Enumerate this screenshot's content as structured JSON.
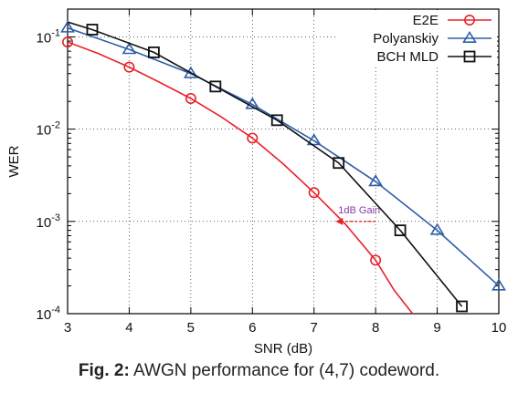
{
  "caption": {
    "label": "Fig. 2:",
    "text": "AWGN performance for (4,7) codeword."
  },
  "chart_data": {
    "type": "line",
    "xlabel": "SNR (dB)",
    "ylabel": "WER",
    "xlim": [
      3,
      10
    ],
    "ylim": [
      0.0001,
      0.2
    ],
    "y_scale": "log",
    "grid": true,
    "legend_position": "top-right",
    "x_ticks": [
      "3",
      "4",
      "5",
      "6",
      "7",
      "8",
      "9",
      "10"
    ],
    "y_ticks": [
      {
        "base": "10",
        "exp": "-1",
        "value": 0.1
      },
      {
        "base": "10",
        "exp": "-2",
        "value": 0.01
      },
      {
        "base": "10",
        "exp": "-3",
        "value": 0.001
      },
      {
        "base": "10",
        "exp": "-4",
        "value": 0.0001
      }
    ],
    "series": [
      {
        "name": "E2E",
        "color": "#e8222a",
        "marker": "circle",
        "line": {
          "x": [
            3,
            3.5,
            4,
            4.5,
            5,
            5.5,
            6,
            6.5,
            7,
            7.5,
            8,
            8.3,
            8.6
          ],
          "y": [
            0.088,
            0.066,
            0.047,
            0.032,
            0.0215,
            0.0135,
            0.008,
            0.0042,
            0.00205,
            0.00095,
            0.00038,
            0.00018,
            0.0001
          ]
        },
        "markers": {
          "x": [
            3,
            4,
            5,
            6,
            7,
            8
          ],
          "y": [
            0.088,
            0.047,
            0.0215,
            0.008,
            0.00205,
            0.00038
          ]
        }
      },
      {
        "name": "Polyanskiy",
        "color": "#2e5ea8",
        "marker": "triangle",
        "line": {
          "x": [
            3,
            4,
            5,
            6,
            7,
            8,
            9,
            10
          ],
          "y": [
            0.125,
            0.073,
            0.04,
            0.0185,
            0.0075,
            0.0027,
            0.0008,
            0.0002
          ]
        },
        "markers": {
          "x": [
            3,
            4,
            5,
            6,
            7,
            8,
            9,
            10
          ],
          "y": [
            0.125,
            0.073,
            0.04,
            0.0185,
            0.0075,
            0.0027,
            0.0008,
            0.0002
          ]
        }
      },
      {
        "name": "BCH MLD",
        "color": "#111111",
        "marker": "square",
        "line": {
          "x": [
            3,
            3.4,
            4.4,
            5.4,
            6.4,
            7.4,
            8.4,
            9.4
          ],
          "y": [
            0.145,
            0.12,
            0.068,
            0.029,
            0.0125,
            0.0043,
            0.0008,
            0.00012
          ]
        },
        "markers": {
          "x": [
            3.4,
            4.4,
            5.4,
            6.4,
            7.4,
            8.4,
            9.4
          ],
          "y": [
            0.12,
            0.068,
            0.029,
            0.0125,
            0.0043,
            0.0008,
            0.00012
          ]
        }
      }
    ],
    "annotations": [
      {
        "text": "1dB Gain",
        "color": "#8b3aa8",
        "arrow_from": [
          8.0,
          0.001
        ],
        "arrow_to": [
          7.35,
          0.001
        ]
      }
    ]
  }
}
